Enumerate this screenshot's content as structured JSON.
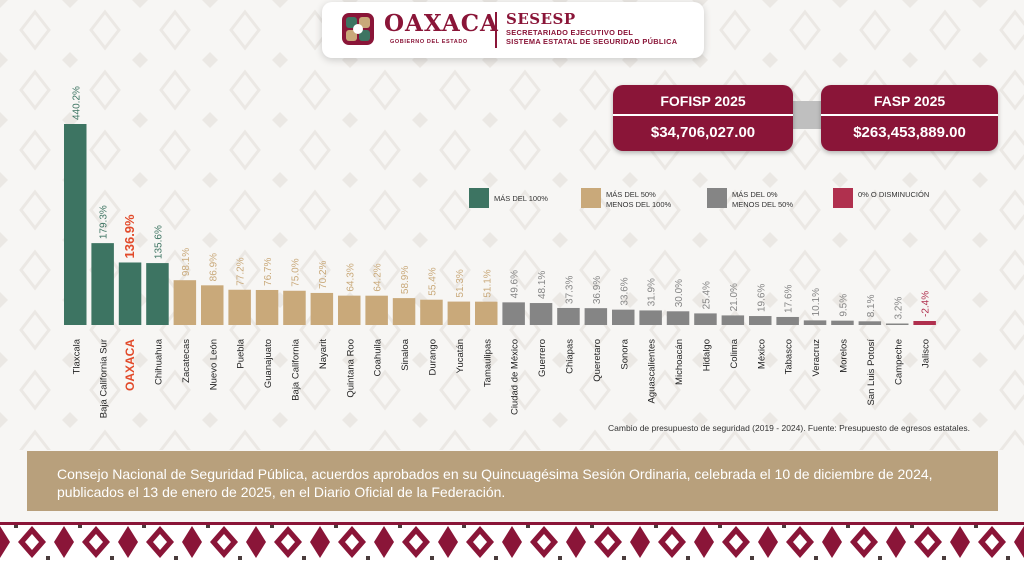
{
  "header": {
    "logo_name": "OAXACA",
    "logo_sub": "GOBIERNO DEL ESTADO",
    "org_name": "SESESP",
    "org_full_line1": "SECRETARIADO EJECUTIVO DEL",
    "org_full_line2": "SISTEMA ESTATAL DE SEGURIDAD PÚBLICA"
  },
  "funds": [
    {
      "name": "FOFISP 2025",
      "amount": "$34,706,027.00"
    },
    {
      "name": "FASP 2025",
      "amount": "$263,453,889.00"
    }
  ],
  "legend": [
    {
      "line1": "MÁS DEL 100%",
      "line2": "",
      "color": "#3d7462"
    },
    {
      "line1": "MÁS DEL 50%",
      "line2": "MENOS DEL 100%",
      "color": "#c9a97a"
    },
    {
      "line1": "MÁS DEL 0%",
      "line2": "MENOS DEL 50%",
      "color": "#858585"
    },
    {
      "line1": "0% O DISMINUCIÓN",
      "line2": "",
      "color": "#b0304e"
    }
  ],
  "colors": {
    "maroon": "#8a1538",
    "green": "#3d7462",
    "tan": "#c9a97a",
    "gray": "#858585",
    "red": "#b0304e",
    "highlight": "#e24a2a",
    "banner": "#b8a07c"
  },
  "chart_data": {
    "type": "bar",
    "title": "",
    "xlabel": "",
    "ylabel": "",
    "ylim": [
      -2.4,
      440.2
    ],
    "highlight_category": "OAXACA",
    "categories": [
      "Tlaxcala",
      "Baja California Sur",
      "OAXACA",
      "Chihuahua",
      "Zacatecas",
      "Nuevo León",
      "Puebla",
      "Guanajuato",
      "Baja California",
      "Nayarit",
      "Quintana Roo",
      "Coahuila",
      "Sinaloa",
      "Durango",
      "Yucatán",
      "Tamaulipas",
      "Ciudad de México",
      "Guerrero",
      "Chiapas",
      "Queretaro",
      "Sonora",
      "Aguascalientes",
      "Michoacán",
      "Hidalgo",
      "Colima",
      "México",
      "Tabasco",
      "Veracruz",
      "Morelos",
      "San Luis Potosí",
      "Campeche",
      "Jalisco"
    ],
    "values": [
      440.2,
      179.3,
      136.9,
      135.6,
      98.1,
      86.9,
      77.2,
      76.7,
      75.0,
      70.2,
      64.3,
      64.2,
      58.9,
      55.4,
      51.3,
      51.1,
      49.6,
      48.1,
      37.3,
      36.9,
      33.6,
      31.9,
      30.0,
      25.4,
      21.0,
      19.6,
      17.6,
      10.1,
      9.5,
      8.1,
      3.2,
      -2.4
    ],
    "value_labels": [
      "440.2%",
      "179.3%",
      "136.9%",
      "135.6%",
      "98.1%",
      "86.9%",
      "77.2%",
      "76.7%",
      "75.0%",
      "70.2%",
      "64.3%",
      "64.2%",
      "58.9%",
      "55.4%",
      "51.3%",
      "51.1%",
      "49.6%",
      "48.1%",
      "37.3%",
      "36.9%",
      "33.6%",
      "31.9%",
      "30.0%",
      "25.4%",
      "21.0%",
      "19.6%",
      "17.6%",
      "10.1%",
      "9.5%",
      "8.1%",
      "3.2%",
      "-2.4%"
    ],
    "source_note": "Cambio de presupuesto de seguridad (2019 - 2024). Fuente: Presupuesto de egresos estatales."
  },
  "banner": {
    "text": "Consejo Nacional de Seguridad Pública,  acuerdos aprobados en su Quincuagésima Sesión Ordinaria, celebrada el 10 de diciembre de 2024, publicados el 13 de enero de 2025, en el Diario Oficial de la Federación."
  }
}
